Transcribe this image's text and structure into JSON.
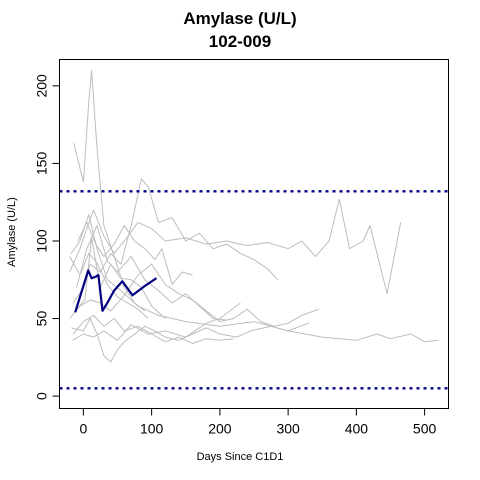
{
  "chart_data": {
    "type": "line",
    "title": "Amylase (U/L)",
    "subtitle": "102-009",
    "xlabel": "Days Since C1D1",
    "ylabel": "Amylase (U/L)",
    "xlim": [
      -35,
      535
    ],
    "ylim": [
      -8,
      217
    ],
    "x_ticks": [
      0,
      100,
      200,
      300,
      400,
      500
    ],
    "y_ticks": [
      0,
      50,
      100,
      150,
      200
    ],
    "grid": false,
    "reference_lines": [
      132,
      5
    ],
    "highlight_color": "#000080",
    "background_color": "#bdbdbd",
    "series": [
      {
        "values": [
          [
            -14,
            163
          ],
          [
            0,
            138
          ],
          [
            8,
            190
          ],
          [
            12,
            210
          ],
          [
            20,
            160
          ],
          [
            30,
            110
          ],
          [
            45,
            90
          ],
          [
            60,
            70
          ],
          [
            75,
            60
          ],
          [
            90,
            55
          ]
        ]
      },
      {
        "values": [
          [
            -18,
            92
          ],
          [
            -5,
            100
          ],
          [
            8,
            117
          ],
          [
            20,
            95
          ],
          [
            35,
            75
          ],
          [
            55,
            68
          ],
          [
            80,
            58
          ],
          [
            110,
            52
          ],
          [
            150,
            48
          ],
          [
            200,
            45
          ],
          [
            250,
            48
          ],
          [
            300,
            42
          ],
          [
            350,
            38
          ],
          [
            400,
            36
          ],
          [
            430,
            40
          ],
          [
            450,
            37
          ],
          [
            480,
            40
          ],
          [
            500,
            35
          ],
          [
            520,
            36
          ]
        ]
      },
      {
        "values": [
          [
            -20,
            80
          ],
          [
            -5,
            95
          ],
          [
            5,
            108
          ],
          [
            15,
            120
          ],
          [
            30,
            103
          ],
          [
            45,
            92
          ],
          [
            60,
            100
          ],
          [
            80,
            112
          ],
          [
            100,
            108
          ],
          [
            120,
            100
          ],
          [
            150,
            102
          ],
          [
            180,
            98
          ],
          [
            210,
            100
          ],
          [
            240,
            97
          ],
          [
            270,
            99
          ],
          [
            300,
            95
          ],
          [
            320,
            100
          ],
          [
            340,
            90
          ],
          [
            360,
            100
          ],
          [
            375,
            127
          ],
          [
            390,
            95
          ],
          [
            410,
            100
          ],
          [
            420,
            110
          ],
          [
            445,
            66
          ],
          [
            465,
            112
          ]
        ]
      },
      {
        "values": [
          [
            -15,
            60
          ],
          [
            0,
            70
          ],
          [
            10,
            85
          ],
          [
            25,
            80
          ],
          [
            40,
            92
          ],
          [
            55,
            85
          ],
          [
            70,
            110
          ],
          [
            85,
            140
          ],
          [
            95,
            135
          ],
          [
            110,
            112
          ],
          [
            130,
            115
          ],
          [
            150,
            100
          ],
          [
            170,
            105
          ],
          [
            190,
            95
          ],
          [
            210,
            98
          ],
          [
            230,
            92
          ],
          [
            250,
            88
          ],
          [
            270,
            82
          ],
          [
            285,
            75
          ]
        ]
      },
      {
        "values": [
          [
            -20,
            50
          ],
          [
            -5,
            58
          ],
          [
            10,
            62
          ],
          [
            25,
            60
          ],
          [
            40,
            55
          ],
          [
            60,
            65
          ],
          [
            80,
            78
          ],
          [
            100,
            85
          ],
          [
            120,
            72
          ],
          [
            140,
            66
          ],
          [
            160,
            62
          ],
          [
            180,
            55
          ],
          [
            200,
            48
          ],
          [
            220,
            50
          ],
          [
            240,
            56
          ],
          [
            260,
            48
          ],
          [
            280,
            45
          ],
          [
            300,
            47
          ],
          [
            320,
            52
          ],
          [
            345,
            56
          ]
        ]
      },
      {
        "values": [
          [
            -15,
            40
          ],
          [
            0,
            48
          ],
          [
            15,
            52
          ],
          [
            30,
            45
          ],
          [
            45,
            50
          ],
          [
            60,
            42
          ],
          [
            80,
            45
          ],
          [
            100,
            40
          ],
          [
            120,
            35
          ],
          [
            140,
            38
          ],
          [
            160,
            34
          ],
          [
            180,
            37
          ],
          [
            200,
            36
          ],
          [
            220,
            37
          ]
        ]
      },
      {
        "values": [
          [
            -18,
            44
          ],
          [
            0,
            42
          ],
          [
            10,
            50
          ],
          [
            20,
            40
          ],
          [
            30,
            26
          ],
          [
            40,
            22
          ],
          [
            50,
            30
          ],
          [
            60,
            35
          ],
          [
            75,
            40
          ],
          [
            90,
            45
          ],
          [
            105,
            42
          ],
          [
            120,
            38
          ],
          [
            140,
            36
          ],
          [
            160,
            40
          ],
          [
            180,
            44
          ],
          [
            200,
            40
          ],
          [
            225,
            38
          ],
          [
            245,
            42
          ],
          [
            275,
            45
          ],
          [
            300,
            42
          ],
          [
            330,
            47
          ]
        ]
      },
      {
        "values": [
          [
            -10,
            70
          ],
          [
            5,
            95
          ],
          [
            20,
            110
          ],
          [
            35,
            87
          ],
          [
            50,
            80
          ],
          [
            70,
            90
          ],
          [
            90,
            75
          ],
          [
            110,
            68
          ],
          [
            130,
            60
          ],
          [
            150,
            66
          ],
          [
            170,
            58
          ],
          [
            190,
            50
          ],
          [
            210,
            49
          ]
        ]
      },
      {
        "values": [
          [
            -12,
            55
          ],
          [
            2,
            62
          ],
          [
            12,
            102
          ],
          [
            25,
            70
          ],
          [
            40,
            85
          ],
          [
            55,
            76
          ],
          [
            70,
            75
          ],
          [
            85,
            70
          ],
          [
            100,
            58
          ],
          [
            120,
            50
          ]
        ]
      },
      {
        "values": [
          [
            -8,
            100
          ],
          [
            5,
            112
          ],
          [
            18,
            98
          ],
          [
            30,
            90
          ],
          [
            45,
            98
          ],
          [
            60,
            110
          ],
          [
            75,
            100
          ],
          [
            90,
            95
          ],
          [
            105,
            88
          ],
          [
            115,
            95
          ],
          [
            130,
            72
          ],
          [
            145,
            80
          ],
          [
            160,
            78
          ]
        ]
      },
      {
        "values": [
          [
            -16,
            36
          ],
          [
            0,
            40
          ],
          [
            15,
            38
          ],
          [
            30,
            42
          ],
          [
            50,
            36
          ],
          [
            70,
            46
          ],
          [
            95,
            40
          ],
          [
            120,
            42
          ],
          [
            150,
            38
          ],
          [
            180,
            47
          ],
          [
            200,
            50
          ],
          [
            230,
            60
          ]
        ]
      },
      {
        "values": [
          [
            -20,
            90
          ],
          [
            -5,
            78
          ],
          [
            8,
            92
          ],
          [
            20,
            86
          ],
          [
            35,
            72
          ],
          [
            50,
            64
          ],
          [
            65,
            60
          ],
          [
            80,
            56
          ],
          [
            95,
            50
          ]
        ]
      },
      {
        "name": "102-009",
        "highlight": true,
        "values": [
          [
            -12,
            54
          ],
          [
            7,
            81
          ],
          [
            12,
            76
          ],
          [
            18,
            77
          ],
          [
            22,
            78
          ],
          [
            28,
            55
          ],
          [
            35,
            60
          ],
          [
            45,
            68
          ],
          [
            57,
            74
          ],
          [
            72,
            65
          ],
          [
            90,
            71
          ],
          [
            107,
            76
          ]
        ]
      }
    ]
  }
}
